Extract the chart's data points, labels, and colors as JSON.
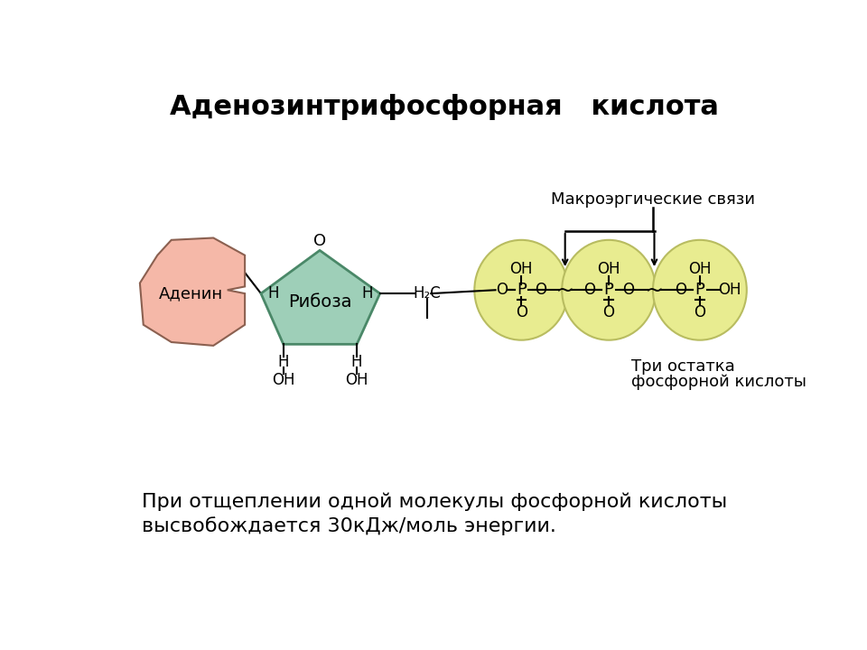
{
  "title": "Аденозинтрифосфорная   кислота",
  "title_fontsize": 22,
  "bg_color": "#ffffff",
  "adenine_color": "#f5b8a8",
  "adenine_edge_color": "#8b6050",
  "ribose_color": "#9ecfb8",
  "ribose_edge_color": "#4a8868",
  "phosphate_color": "#e8ec90",
  "phosphate_edge_color": "#b8bc60",
  "text_color": "#000000",
  "bottom_text_line1": "При отщеплении одной молекулы фосфорной кислоты",
  "bottom_text_line2": "высвобождается 30кДж/моль энергии.",
  "label_macroenergy": "Макроэргические связи",
  "label_three_phosphate_1": "Три остатка",
  "label_three_phosphate_2": "фосфорной кислоты",
  "label_adenine": "Аденин",
  "label_ribose": "Рибоза"
}
